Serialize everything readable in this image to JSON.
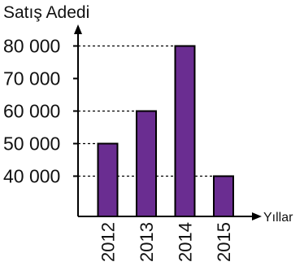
{
  "chart_data": {
    "type": "bar",
    "ylabel": "Satış Adedi",
    "xlabel": "Yıllar",
    "categories": [
      "2012",
      "2013",
      "2014",
      "2015"
    ],
    "values": [
      50000,
      60000,
      80000,
      40000
    ],
    "yticks": [
      {
        "value": 80000,
        "label": "80 000"
      },
      {
        "value": 70000,
        "label": "70 000"
      },
      {
        "value": 60000,
        "label": "60 000"
      },
      {
        "value": 50000,
        "label": "50 000"
      },
      {
        "value": 40000,
        "label": "40 000"
      }
    ],
    "ylim": [
      27000,
      92000
    ],
    "grid": "dashed lines at bar tops",
    "bar_color": "#6a2d91",
    "axis_color": "#000000"
  }
}
